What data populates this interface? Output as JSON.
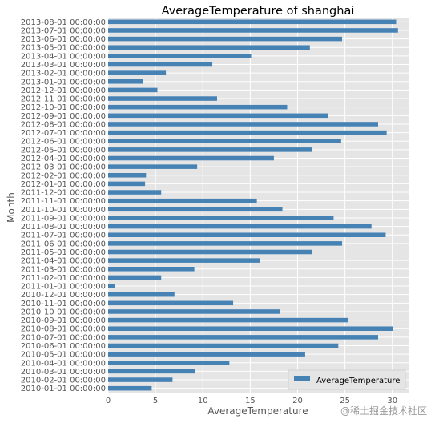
{
  "chart_data": {
    "type": "bar",
    "orientation": "horizontal",
    "title": "AverageTemperature of shanghai",
    "xlabel": "AverageTemperature",
    "ylabel": "Month",
    "xlim": [
      0,
      31.8
    ],
    "xticks": [
      "0",
      "5",
      "10",
      "15",
      "20",
      "25",
      "30"
    ],
    "grid": true,
    "legend_position": "lower-right",
    "colors": {
      "bar": "#4682b4",
      "plot_bg": "#e5e5e5",
      "grid": "#ffffff"
    },
    "categories": [
      "2010-01-01 00:00:00",
      "2010-02-01 00:00:00",
      "2010-03-01 00:00:00",
      "2010-04-01 00:00:00",
      "2010-05-01 00:00:00",
      "2010-06-01 00:00:00",
      "2010-07-01 00:00:00",
      "2010-08-01 00:00:00",
      "2010-09-01 00:00:00",
      "2010-10-01 00:00:00",
      "2010-11-01 00:00:00",
      "2010-12-01 00:00:00",
      "2011-01-01 00:00:00",
      "2011-02-01 00:00:00",
      "2011-03-01 00:00:00",
      "2011-04-01 00:00:00",
      "2011-05-01 00:00:00",
      "2011-06-01 00:00:00",
      "2011-07-01 00:00:00",
      "2011-08-01 00:00:00",
      "2011-09-01 00:00:00",
      "2011-10-01 00:00:00",
      "2011-11-01 00:00:00",
      "2011-12-01 00:00:00",
      "2012-01-01 00:00:00",
      "2012-02-01 00:00:00",
      "2012-03-01 00:00:00",
      "2012-04-01 00:00:00",
      "2012-05-01 00:00:00",
      "2012-06-01 00:00:00",
      "2012-07-01 00:00:00",
      "2012-08-01 00:00:00",
      "2012-09-01 00:00:00",
      "2012-10-01 00:00:00",
      "2012-11-01 00:00:00",
      "2012-12-01 00:00:00",
      "2013-01-01 00:00:00",
      "2013-02-01 00:00:00",
      "2013-03-01 00:00:00",
      "2013-04-01 00:00:00",
      "2013-05-01 00:00:00",
      "2013-06-01 00:00:00",
      "2013-07-01 00:00:00",
      "2013-08-01 00:00:00"
    ],
    "series": [
      {
        "name": "AverageTemperature",
        "values": [
          4.6,
          6.8,
          9.2,
          12.8,
          20.8,
          24.3,
          28.5,
          30.1,
          25.3,
          18.1,
          13.2,
          7.0,
          0.7,
          5.6,
          9.1,
          16.0,
          21.5,
          24.7,
          29.3,
          27.8,
          23.8,
          18.4,
          15.7,
          5.6,
          3.9,
          4.0,
          9.4,
          17.5,
          21.5,
          24.6,
          29.4,
          28.5,
          23.2,
          18.9,
          11.5,
          5.2,
          3.7,
          6.1,
          11.0,
          15.1,
          21.3,
          24.7,
          30.6,
          30.4
        ]
      }
    ]
  },
  "watermark": "@稀土掘金技术社区"
}
